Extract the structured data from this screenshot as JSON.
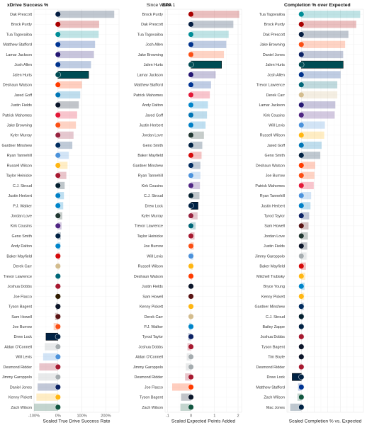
{
  "subtitle": "Since Week 1",
  "chart_data": [
    {
      "type": "bar",
      "orientation": "horizontal",
      "title": "xDrive Success %",
      "xlabel": "Scaled True Drive Success Rate",
      "xlim": [
        -1.0,
        2.55
      ],
      "xticks": [
        -1.0,
        0.0,
        1.0,
        2.0
      ],
      "xtick_labels": [
        "-100%",
        "0%",
        "100%",
        "200%"
      ],
      "grid": true,
      "players": [
        "Dak Prescott",
        "Brock Purdy",
        "Tua Tagovailoa",
        "Matthew Stafford",
        "Lamar Jackson",
        "Josh Allen",
        "Jalen Hurts",
        "Deshaun Watson",
        "Jared Goff",
        "Justin Fields",
        "Patrick Mahomes",
        "Jake Browning",
        "Kyler Murray",
        "Gardner Minshew",
        "Ryan Tannehill",
        "Russell Wilson",
        "Taylor Heinicke",
        "C.J. Stroud",
        "Justin Herbert",
        "P.J. Walker",
        "Jordan Love",
        "Kirk Cousins",
        "Geno Smith",
        "Andy Dalton",
        "Baker Mayfield",
        "Derek Carr",
        "Trevor Lawrence",
        "Joshua Dobbs",
        "Joe Flacco",
        "Tyson Bagent",
        "Sam Howell",
        "Joe Burrow",
        "Drew Lock",
        "Aidan O'Connell",
        "Will Levis",
        "Desmond Ridder",
        "Jimmy Garoppolo",
        "Daniel Jones",
        "Kenny Pickett",
        "Zach Wilson"
      ],
      "values": [
        2.35,
        1.72,
        1.7,
        1.55,
        1.5,
        1.38,
        1.28,
        1.0,
        0.93,
        0.87,
        0.8,
        0.75,
        0.65,
        0.6,
        0.45,
        0.4,
        0.35,
        0.28,
        0.25,
        0.22,
        0.18,
        0.15,
        0.12,
        0.1,
        0.07,
        0.05,
        0.02,
        -0.02,
        -0.05,
        -0.08,
        -0.12,
        -0.18,
        -0.5,
        -0.55,
        -0.62,
        -0.78,
        -0.82,
        -0.85,
        -0.9,
        -1.0
      ],
      "colors": [
        "#041E42",
        "#AA0000",
        "#008E97",
        "#003594",
        "#241773",
        "#00338D",
        "#004C54",
        "#FF3C00",
        "#0076B6",
        "#0B162A",
        "#E31837",
        "#FB4F14",
        "#97233F",
        "#002C5F",
        "#4B92DB",
        "#FFB612",
        "#A71930",
        "#03202F",
        "#0080C6",
        "#0085CA",
        "#203731",
        "#4F2683",
        "#002244",
        "#0085CA",
        "#D50A0A",
        "#D3BC8D",
        "#006778",
        "#A71930",
        "#311D00",
        "#0B162A",
        "#5A1414",
        "#FB4F14",
        "#002244",
        "#A5ACAF",
        "#4B92DB",
        "#A71930",
        "#A5ACAF",
        "#0B2265",
        "#FFB612",
        "#125740"
      ],
      "highlighted": [
        "Jalen Hurts",
        "Drew Lock"
      ]
    },
    {
      "type": "bar",
      "orientation": "horizontal",
      "title": "EPA",
      "xlabel": "Scaled Expected Points Added",
      "xlim": [
        -1.1,
        2.15
      ],
      "xticks": [
        -1.0,
        0.0,
        1.0,
        2.0
      ],
      "xtick_labels": [
        "-1",
        "0",
        "1",
        "2"
      ],
      "grid": true,
      "players": [
        "Brock Purdy",
        "Dak Prescott",
        "Tua Tagovailoa",
        "Josh Allen",
        "Jake Browning",
        "Jalen Hurts",
        "Lamar Jackson",
        "Matthew Stafford",
        "Patrick Mahomes",
        "Andy Dalton",
        "Jared Goff",
        "Justin Herbert",
        "Jordan Love",
        "Geno Smith",
        "Baker Mayfield",
        "Gardner Minshew",
        "Ryan Tannehill",
        "Kirk Cousins",
        "C.J. Stroud",
        "Drew Lock",
        "Kyler Murray",
        "Trevor Lawrence",
        "Taylor Heinicke",
        "Joe Burrow",
        "Will Levis",
        "Russell Wilson",
        "Deshaun Watson",
        "Justin Fields",
        "Sam Howell",
        "Kenny Pickett",
        "Derek Carr",
        "P.J. Walker",
        "Tyrod Taylor",
        "Joshua Dobbs",
        "Aidan O'Connell",
        "Jimmy Garoppolo",
        "Desmond Ridder",
        "Joe Flacco",
        "Tyson Bagent",
        "Zach Wilson"
      ],
      "values": [
        2.05,
        1.8,
        1.6,
        1.5,
        1.4,
        1.3,
        1.05,
        0.85,
        0.8,
        0.72,
        0.68,
        0.62,
        0.55,
        0.48,
        0.45,
        0.4,
        0.4,
        0.38,
        0.36,
        0.3,
        0.28,
        0.2,
        0.15,
        0.12,
        0.1,
        0.08,
        0.05,
        0.02,
        0.0,
        -0.02,
        -0.05,
        -0.08,
        -0.12,
        -0.15,
        -0.18,
        -0.22,
        -0.25,
        -0.8,
        -0.42,
        -0.45
      ],
      "colors": [
        "#AA0000",
        "#041E42",
        "#008E97",
        "#00338D",
        "#FB4F14",
        "#004C54",
        "#241773",
        "#003594",
        "#E31837",
        "#0085CA",
        "#0076B6",
        "#0080C6",
        "#203731",
        "#002244",
        "#D50A0A",
        "#002C5F",
        "#4B92DB",
        "#4F2683",
        "#03202F",
        "#002244",
        "#97233F",
        "#006778",
        "#A71930",
        "#FB4F14",
        "#4B92DB",
        "#FFB612",
        "#FF3C00",
        "#0B162A",
        "#5A1414",
        "#FFB612",
        "#D3BC8D",
        "#0085CA",
        "#0B2265",
        "#A71930",
        "#A5ACAF",
        "#A5ACAF",
        "#A71930",
        "#FF3C00",
        "#0B162A",
        "#125740"
      ],
      "highlighted": [
        "Jalen Hurts",
        "Drew Lock"
      ]
    },
    {
      "type": "bar",
      "orientation": "horizontal",
      "title": "Completion % over Expected",
      "xlabel": "Scaled Completion % vs. Expected",
      "xlim": [
        -1.1,
        4.75
      ],
      "xticks": [
        -1.0,
        0.0,
        1.0,
        2.0,
        3.0,
        4.0
      ],
      "xtick_labels": [
        "",
        "",
        "",
        "",
        "",
        ""
      ],
      "grid": true,
      "players": [
        "Tua Tagovailoa",
        "Brock Purdy",
        "Dak Prescott",
        "Jake Browning",
        "Daniel Jones",
        "Jalen Hurts",
        "Josh Allen",
        "Trevor Lawrence",
        "Derek Carr",
        "Lamar Jackson",
        "Kirk Cousins",
        "Will Levis",
        "Russell Wilson",
        "Jared Goff",
        "Geno Smith",
        "Deshaun Watson",
        "Joe Burrow",
        "Patrick Mahomes",
        "Ryan Tannehill",
        "Justin Herbert",
        "Tyrod Taylor",
        "Sam Howell",
        "Jordan Love",
        "Justin Fields",
        "Jimmy Garoppolo",
        "Baker Mayfield",
        "Mitchell Trubisky",
        "Bryce Young",
        "Kenny Pickett",
        "Gardner Minshew",
        "C.J. Stroud",
        "Bailey Zappe",
        "Joshua Dobbs",
        "Tyson Bagent",
        "Tim Boyle",
        "Desmond Ridder",
        "Drew Lock",
        "Matthew Stafford",
        "Zach Wilson",
        "Mac Jones"
      ],
      "values": [
        4.5,
        4.2,
        3.6,
        3.35,
        3.2,
        3.2,
        3.0,
        2.75,
        2.75,
        2.6,
        2.55,
        1.8,
        1.75,
        1.55,
        1.45,
        1.05,
        1.0,
        0.95,
        0.75,
        0.7,
        0.6,
        0.55,
        0.5,
        0.45,
        0.4,
        0.35,
        0.3,
        0.25,
        0.22,
        0.18,
        0.1,
        0.05,
        0.02,
        0.0,
        -0.02,
        -0.1,
        -0.7,
        -0.25,
        -0.3,
        -0.85
      ],
      "colors": [
        "#008E97",
        "#AA0000",
        "#041E42",
        "#FB4F14",
        "#0B2265",
        "#004C54",
        "#00338D",
        "#006778",
        "#D3BC8D",
        "#241773",
        "#4F2683",
        "#4B92DB",
        "#FFB612",
        "#0076B6",
        "#002244",
        "#FF3C00",
        "#FB4F14",
        "#E31837",
        "#4B92DB",
        "#0080C6",
        "#0B2265",
        "#5A1414",
        "#203731",
        "#0B162A",
        "#A5ACAF",
        "#D50A0A",
        "#FFB612",
        "#0085CA",
        "#FFB612",
        "#002C5F",
        "#03202F",
        "#002244",
        "#A71930",
        "#0B162A",
        "#0B162A",
        "#A71930",
        "#002244",
        "#003594",
        "#125740",
        "#002244"
      ],
      "highlighted": [
        "Jalen Hurts",
        "Drew Lock"
      ]
    }
  ]
}
